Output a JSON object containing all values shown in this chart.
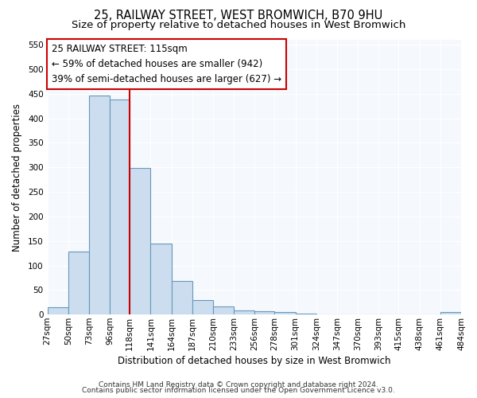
{
  "title": "25, RAILWAY STREET, WEST BROMWICH, B70 9HU",
  "subtitle": "Size of property relative to detached houses in West Bromwich",
  "xlabel": "Distribution of detached houses by size in West Bromwich",
  "ylabel": "Number of detached properties",
  "bin_edges": [
    27,
    50,
    73,
    96,
    118,
    141,
    164,
    187,
    210,
    233,
    256,
    278,
    301,
    324,
    347,
    370,
    393,
    415,
    438,
    461,
    484
  ],
  "bar_heights": [
    15,
    128,
    447,
    438,
    298,
    145,
    68,
    29,
    16,
    8,
    6,
    5,
    2,
    0,
    1,
    0,
    0,
    0,
    0,
    5
  ],
  "bar_color": "#ccddef",
  "bar_edge_color": "#6699bb",
  "vline_x": 118,
  "vline_color": "#cc0000",
  "annotation_text_line1": "25 RAILWAY STREET: 115sqm",
  "annotation_text_line2": "← 59% of detached houses are smaller (942)",
  "annotation_text_line3": "39% of semi-detached houses are larger (627) →",
  "ylim": [
    0,
    560
  ],
  "yticks": [
    0,
    50,
    100,
    150,
    200,
    250,
    300,
    350,
    400,
    450,
    500,
    550
  ],
  "tick_labels": [
    "27sqm",
    "50sqm",
    "73sqm",
    "96sqm",
    "118sqm",
    "141sqm",
    "164sqm",
    "187sqm",
    "210sqm",
    "233sqm",
    "256sqm",
    "278sqm",
    "301sqm",
    "324sqm",
    "347sqm",
    "370sqm",
    "393sqm",
    "415sqm",
    "438sqm",
    "461sqm",
    "484sqm"
  ],
  "footer_line1": "Contains HM Land Registry data © Crown copyright and database right 2024.",
  "footer_line2": "Contains public sector information licensed under the Open Government Licence v3.0.",
  "background_color": "#ffffff",
  "plot_bg_color": "#f5f8fc",
  "grid_color": "#ffffff",
  "title_fontsize": 10.5,
  "subtitle_fontsize": 9.5,
  "axis_label_fontsize": 8.5,
  "tick_fontsize": 7.5,
  "footer_fontsize": 6.5,
  "annot_fontsize": 8.5
}
